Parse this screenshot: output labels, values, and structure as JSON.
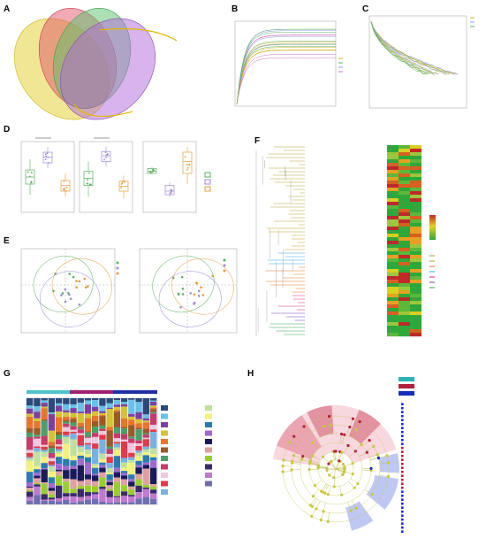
{
  "panel_labels": [
    "A",
    "B",
    "C",
    "D",
    "E",
    "F",
    "G",
    "H"
  ],
  "venn": {
    "sets": [
      "",
      "",
      "",
      ""
    ],
    "region_counts": [
      "",
      "",
      "",
      "",
      "",
      "",
      "",
      "",
      "",
      "",
      "",
      "",
      "",
      "",
      ""
    ],
    "shared_taxa_list_1": [
      "",
      "",
      "",
      "",
      "",
      "",
      ""
    ],
    "shared_taxa_list_2": [
      "",
      "",
      "",
      ""
    ]
  },
  "panel_b": {
    "title": "",
    "xlabel": "",
    "ylabel": "",
    "legend_title": "",
    "legend": [
      "",
      "",
      "",
      ""
    ]
  },
  "panel_c": {
    "xlabel": "",
    "ylabel": "",
    "legend": [
      "",
      "",
      ""
    ]
  },
  "panel_d": {
    "titles": [
      "",
      "",
      ""
    ],
    "ylabel": "",
    "groups": [
      "",
      "",
      ""
    ],
    "legend_title": "",
    "legend": [
      "",
      "",
      ""
    ],
    "significance": [
      "",
      ""
    ]
  },
  "panel_e": {
    "title": "",
    "pcoa_xlabel": "",
    "pcoa_ylabel": "",
    "nmds_xlabel": "",
    "nmds_ylabel": "",
    "legend_title": "",
    "legend": [
      "",
      "",
      ""
    ]
  },
  "panel_f": {
    "taxa": [
      "",
      "",
      "",
      "",
      "",
      "",
      "",
      "",
      "",
      "",
      "",
      "",
      "",
      "",
      "",
      "",
      "",
      "",
      "",
      "",
      "",
      "",
      "",
      "",
      "",
      "",
      "",
      "",
      "",
      "",
      "",
      "",
      "",
      "",
      "",
      "",
      "",
      "",
      "",
      "",
      "",
      "",
      "",
      "",
      "",
      "",
      "",
      "",
      "",
      "",
      "",
      "",
      "",
      ""
    ],
    "columns": [
      "",
      "",
      ""
    ],
    "value_title": "",
    "value_ticks": [
      "",
      "",
      "",
      "",
      ""
    ],
    "phylum_title": "",
    "phylum_legend": [
      "",
      "",
      "",
      "",
      "",
      "",
      ""
    ],
    "phylum_colors": [
      "#b8a23a",
      "#c9a227",
      "#e07a1f",
      "#2ea8d8",
      "#d62e7a",
      "#7a3fb5",
      "#3aa04a"
    ]
  },
  "panel_g": {
    "groups": [
      "",
      "",
      ""
    ],
    "group_colors": [
      "#4fc3c7",
      "#a0206e",
      "#1f2fa8"
    ],
    "ylabel": "",
    "samples": [
      "",
      "",
      "",
      "",
      "",
      "",
      "",
      "",
      "",
      "",
      "",
      "",
      "",
      "",
      "",
      "",
      "",
      ""
    ],
    "legend": [
      "",
      "",
      "",
      "",
      "",
      "",
      "",
      "",
      "",
      "",
      "",
      "",
      "",
      "",
      "",
      "",
      "",
      "",
      "",
      "",
      ""
    ],
    "legend_colors": [
      "#2a4a7a",
      "#6ac0e8",
      "#7d3fa0",
      "#d6c23a",
      "#e8762a",
      "#9a5a2a",
      "#4aa06a",
      "#c83a6a",
      "#f0c8e0",
      "#e03a4a",
      "#7ab0e0",
      "#c0e0a0",
      "#f2f27a",
      "#2c7ab0",
      "#a06ad0",
      "#1a1a5a",
      "#e0a0a0",
      "#9acd32",
      "#3a2a6a",
      "#c07ad0",
      "#6f6fb0"
    ]
  },
  "panel_h": {
    "legend_groups": [
      "",
      "",
      ""
    ],
    "legend_colors": [
      "#2bb3b9",
      "#b0203c",
      "#1a2ac0"
    ],
    "title": "",
    "taxa": [
      "",
      "",
      "",
      "",
      "",
      "",
      "",
      "",
      "",
      "",
      "",
      "",
      "",
      "",
      "",
      "",
      "",
      "",
      "",
      "",
      "",
      "",
      "",
      "",
      "",
      "",
      "",
      "",
      "",
      "",
      "",
      "",
      ""
    ]
  }
}
